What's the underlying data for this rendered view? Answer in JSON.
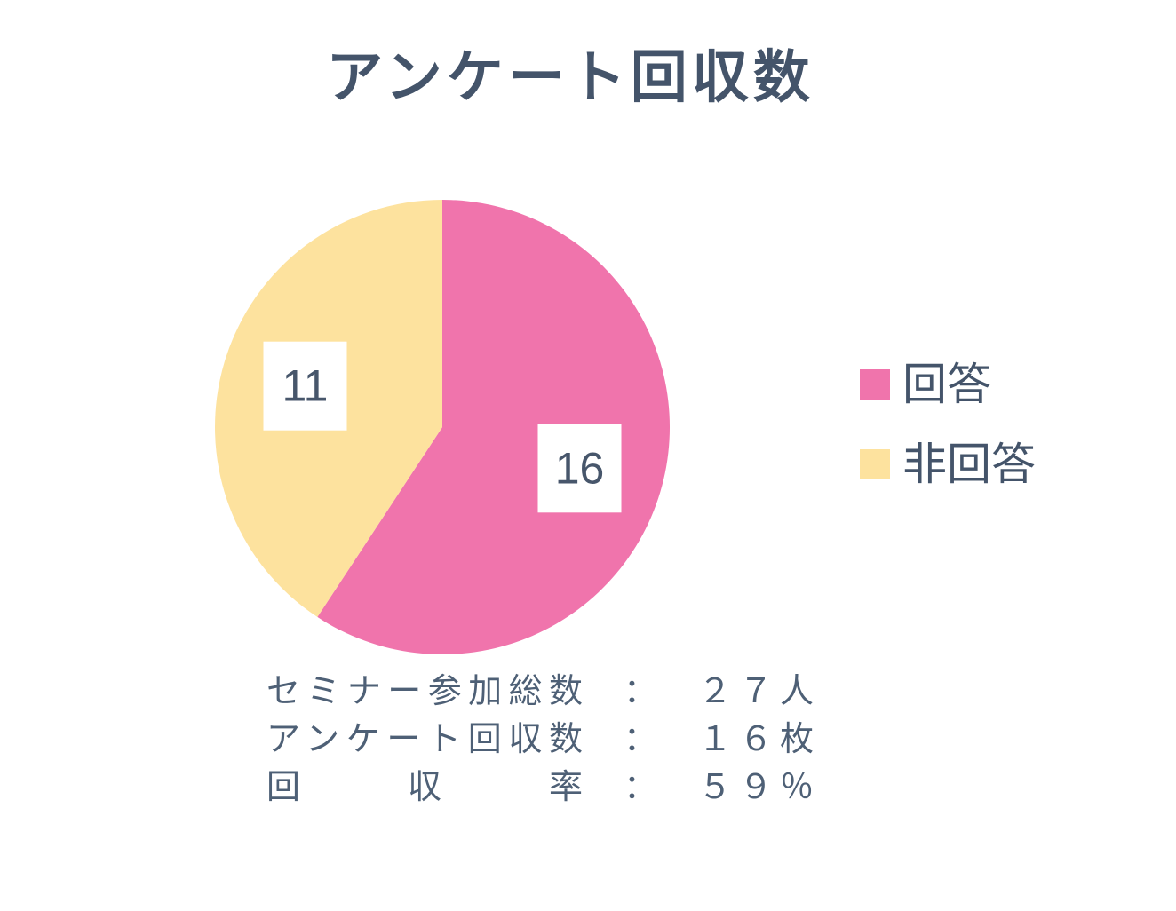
{
  "title": {
    "text": "アンケート回収数",
    "color": "#44546A"
  },
  "chart_data": {
    "type": "pie",
    "title": "アンケート回収数",
    "labels": [
      "回答",
      "非回答"
    ],
    "values": [
      16,
      11
    ],
    "total": 27,
    "colors": [
      "#F074AC",
      "#FDE29E"
    ],
    "data_label_color": "#47566B",
    "data_label_bg": "#FFFFFF",
    "start_angle_deg": 0,
    "direction": "clockwise",
    "legend_position": "right"
  },
  "legend": {
    "items": [
      {
        "label": "回答",
        "color": "#F074AC"
      },
      {
        "label": "非回答",
        "color": "#FDE29E"
      }
    ]
  },
  "stats": {
    "rows": [
      {
        "label": "セミナー参加総数",
        "colon": "：",
        "value": "２７人"
      },
      {
        "label": "アンケート回収数",
        "colon": "：",
        "value": "１６枚"
      },
      {
        "label": "回収率",
        "colon": "：",
        "value": "５９％"
      }
    ]
  }
}
